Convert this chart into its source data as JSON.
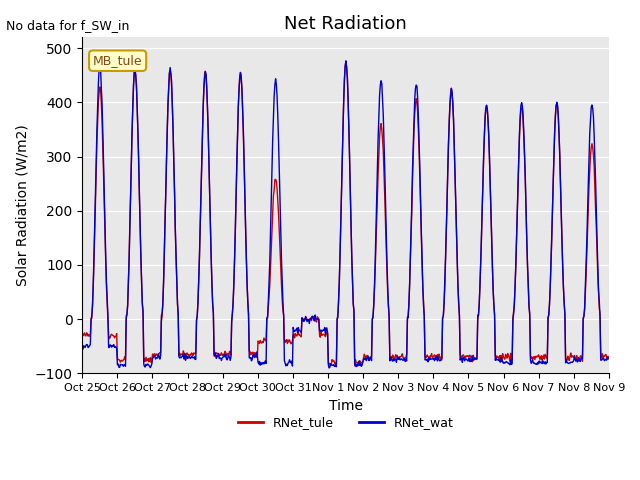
{
  "title": "Net Radiation",
  "xlabel": "Time",
  "ylabel": "Solar Radiation (W/m2)",
  "annotation": "No data for f_SW_in",
  "legend_label1": "RNet_tule",
  "legend_label2": "RNet_wat",
  "legend_box_label": "MB_tule",
  "ylim": [
    -100,
    520
  ],
  "color_tule": "#cc0000",
  "color_wat": "#0000cc",
  "background_color": "#e8e8e8",
  "tick_labels": [
    "Oct 25",
    "Oct 26",
    "Oct 27",
    "Oct 28",
    "Oct 29",
    "Oct 30",
    "Oct 31",
    "Nov 1",
    "Nov 2",
    "Nov 3",
    "Nov 4",
    "Nov 5",
    "Nov 6",
    "Nov 7",
    "Nov 8",
    "Nov 9"
  ],
  "num_days": 15,
  "tule_peaks": [
    430,
    460,
    460,
    455,
    455,
    260,
    0,
    475,
    360,
    405,
    425,
    395,
    395,
    400,
    325
  ],
  "wat_peaks": [
    465,
    460,
    465,
    455,
    455,
    440,
    0,
    475,
    440,
    435,
    425,
    395,
    400,
    400,
    395
  ],
  "tule_nights": [
    -30,
    -75,
    -65,
    -65,
    -65,
    -40,
    -30,
    -80,
    -70,
    -70,
    -70,
    -70,
    -70,
    -70,
    -70
  ],
  "wat_nights": [
    -50,
    -85,
    -70,
    -70,
    -70,
    -80,
    -20,
    -85,
    -75,
    -75,
    -75,
    -75,
    -80,
    -80,
    -75
  ]
}
